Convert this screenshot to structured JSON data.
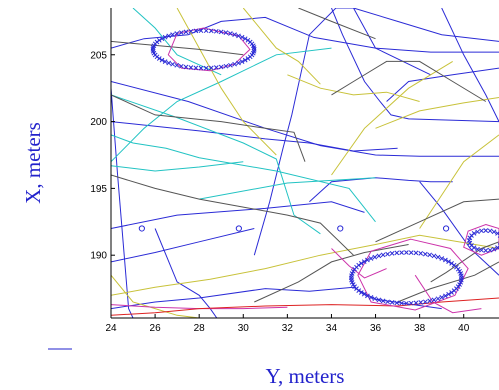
{
  "chart_data": {
    "type": "line",
    "title": "",
    "xlabel": "Y, meters",
    "ylabel": "X, meters",
    "xlim": [
      24,
      41.6
    ],
    "ylim": [
      185.3,
      208.5
    ],
    "xticks": [
      24,
      26,
      28,
      30,
      32,
      34,
      36,
      38,
      40
    ],
    "yticks": [
      190,
      195,
      200,
      205
    ],
    "grid": false,
    "colors": {
      "blue": "#2b2bd6",
      "cyan": "#22c3c3",
      "olive": "#c8c23a",
      "gray": "#555555",
      "magenta": "#cc33aa",
      "red": "#dd2222",
      "axis": "#000000"
    },
    "series": [
      {
        "color": "blue",
        "x": [
          24,
          24.3,
          24.6,
          24.8,
          25.0
        ],
        "y": [
          202.5,
          196,
          190,
          186,
          185.3
        ]
      },
      {
        "color": "blue",
        "x": [
          24,
          27.5,
          31,
          33.5,
          36,
          38,
          41.6
        ],
        "y": [
          203,
          201.5,
          199.5,
          198.2,
          197.5,
          197.4,
          197.4
        ]
      },
      {
        "color": "blue",
        "x": [
          24,
          27,
          31,
          34,
          35.5
        ],
        "y": [
          192,
          193,
          193.5,
          194,
          193.2
        ]
      },
      {
        "color": "blue",
        "x": [
          24,
          26,
          28,
          30.5
        ],
        "y": [
          189.5,
          190.2,
          191,
          192
        ]
      },
      {
        "color": "blue",
        "x": [
          24,
          25.5,
          27.5,
          29,
          31,
          33.2,
          36,
          38.5,
          41.6
        ],
        "y": [
          205.5,
          206.2,
          206.5,
          207.5,
          207.8,
          206.3,
          205.5,
          205.2,
          205.2
        ]
      },
      {
        "color": "blue",
        "x": [
          24,
          28,
          31,
          33,
          35,
          37
        ],
        "y": [
          200,
          199.3,
          198.7,
          198.4,
          197.8,
          198.0
        ]
      },
      {
        "color": "blue",
        "x": [
          26,
          27,
          28,
          28.5,
          28.8
        ],
        "y": [
          192,
          188,
          187,
          186,
          185.3
        ]
      },
      {
        "color": "blue",
        "x": [
          30.5,
          31.2,
          31.8,
          32.2,
          32.6,
          33,
          34.2,
          35,
          36,
          38.5
        ],
        "y": [
          190,
          194,
          198,
          200.5,
          203.5,
          206.5,
          208.5,
          208.5,
          205.5,
          203.5
        ]
      },
      {
        "color": "blue",
        "x": [
          34,
          34.5,
          35.5,
          36.2,
          36.7,
          37.5,
          41.6
        ],
        "y": [
          208.5,
          206.5,
          203,
          201.5,
          200.5,
          200.2,
          200
        ]
      },
      {
        "color": "blue",
        "x": [
          35,
          37,
          39,
          41.6
        ],
        "y": [
          208.5,
          207.5,
          206.5,
          206
        ]
      },
      {
        "color": "blue",
        "x": [
          36.5,
          37.5,
          39.5,
          41.6
        ],
        "y": [
          201.5,
          203,
          203.5,
          204
        ]
      },
      {
        "color": "blue",
        "x": [
          38,
          39,
          40.3,
          41.6
        ],
        "y": [
          195.5,
          193.5,
          190.5,
          188.5
        ]
      },
      {
        "color": "blue",
        "x": [
          24,
          26,
          28,
          31,
          33,
          35,
          36,
          39
        ],
        "y": [
          186,
          186.5,
          186.8,
          187.5,
          187.3,
          187.6,
          186.7,
          186
        ]
      },
      {
        "color": "blue",
        "x": [
          39,
          40,
          41,
          41.6
        ],
        "y": [
          208.5,
          205,
          202,
          200
        ]
      },
      {
        "color": "blue",
        "x": [
          33,
          34,
          36,
          37.5,
          38.5,
          39.5
        ],
        "y": [
          194,
          195.5,
          195.8,
          195.6,
          195.5,
          195.5
        ]
      },
      {
        "color": "cyan",
        "x": [
          24,
          25,
          26.5,
          28,
          31.5,
          34.8,
          36
        ],
        "y": [
          199,
          198.4,
          198,
          197.3,
          196.3,
          195,
          192.5
        ]
      },
      {
        "color": "cyan",
        "x": [
          24,
          27,
          30,
          31.5,
          32.3,
          33.5
        ],
        "y": [
          202,
          200.3,
          198.4,
          197.2,
          193,
          191.6
        ]
      },
      {
        "color": "cyan",
        "x": [
          24,
          25.5,
          27,
          29,
          31.5,
          34
        ],
        "y": [
          197,
          199.5,
          201.5,
          203,
          205,
          205.5
        ]
      },
      {
        "color": "cyan",
        "x": [
          25,
          26,
          27,
          29
        ],
        "y": [
          208.5,
          207,
          205,
          203.5
        ]
      },
      {
        "color": "cyan",
        "x": [
          28,
          32,
          36
        ],
        "y": [
          194.2,
          195.4,
          195.8
        ]
      },
      {
        "color": "cyan",
        "x": [
          24,
          26,
          28,
          30
        ],
        "y": [
          196.7,
          196.3,
          196.6,
          197
        ]
      },
      {
        "color": "olive",
        "x": [
          24,
          25,
          26,
          27,
          28
        ],
        "y": [
          188.5,
          186.5,
          186,
          185.5,
          185.3
        ]
      },
      {
        "color": "olive",
        "x": [
          27,
          28,
          29,
          30,
          31.5
        ],
        "y": [
          208.5,
          205.5,
          202.5,
          200,
          197.5
        ]
      },
      {
        "color": "olive",
        "x": [
          30,
          31.5,
          32.5,
          33.5
        ],
        "y": [
          208.5,
          205.5,
          204.5,
          202.8
        ]
      },
      {
        "color": "olive",
        "x": [
          32,
          33.5,
          35,
          36.5,
          38
        ],
        "y": [
          203.5,
          202.5,
          202,
          202.2,
          201.5
        ]
      },
      {
        "color": "olive",
        "x": [
          34,
          35.5,
          37.5,
          39.5
        ],
        "y": [
          196,
          199.5,
          202.5,
          204.5
        ]
      },
      {
        "color": "olive",
        "x": [
          38,
          39,
          40,
          41.6
        ],
        "y": [
          192,
          194.5,
          197,
          199
        ]
      },
      {
        "color": "olive",
        "x": [
          24,
          26,
          28.5,
          31,
          33.5,
          36,
          38,
          41.6
        ],
        "y": [
          187,
          187.6,
          188.2,
          189,
          190,
          190.8,
          191.5,
          190.5
        ]
      },
      {
        "color": "olive",
        "x": [
          36,
          38,
          40,
          41.6
        ],
        "y": [
          199.5,
          200.8,
          201.4,
          201.8
        ]
      },
      {
        "color": "gray",
        "x": [
          24,
          26,
          28,
          30,
          32,
          33.5,
          35
        ],
        "y": [
          196,
          195,
          194.2,
          193.6,
          193,
          192.4,
          190
        ]
      },
      {
        "color": "gray",
        "x": [
          30.5,
          32.5,
          34,
          35.5,
          36.5,
          37.5
        ],
        "y": [
          186.5,
          188,
          189.5,
          190.2,
          190.5,
          190.8
        ]
      },
      {
        "color": "gray",
        "x": [
          34,
          35,
          36.5,
          38,
          39.5,
          41
        ],
        "y": [
          202,
          203,
          204.5,
          204.5,
          203,
          201.5
        ]
      },
      {
        "color": "gray",
        "x": [
          36,
          38,
          40,
          41.6
        ],
        "y": [
          191,
          192.5,
          194,
          194.2
        ]
      },
      {
        "color": "gray",
        "x": [
          37,
          38.5,
          40.5,
          41.6
        ],
        "y": [
          186.5,
          187.5,
          188.5,
          189.5
        ]
      },
      {
        "color": "gray",
        "x": [
          24,
          26,
          29,
          31,
          32.3,
          32.8
        ],
        "y": [
          202,
          200.5,
          200,
          199.5,
          199.2,
          197
        ]
      },
      {
        "color": "gray",
        "x": [
          32.5,
          34,
          36
        ],
        "y": [
          208.5,
          207.5,
          206.2
        ]
      },
      {
        "color": "gray",
        "x": [
          24,
          26,
          28,
          30
        ],
        "y": [
          206,
          205.7,
          205.4,
          205
        ]
      },
      {
        "color": "gray",
        "x": [
          38.5,
          39.2,
          40.8,
          41.6
        ],
        "y": [
          188,
          188.7,
          190.5,
          191
        ]
      },
      {
        "color": "magenta",
        "x": [
          34,
          34.8,
          35.5,
          36.5
        ],
        "y": [
          190.5,
          189.2,
          188.3,
          189
        ]
      },
      {
        "color": "magenta",
        "x": [
          37.8,
          38.6,
          39.5,
          40.8
        ],
        "y": [
          188.5,
          186.5,
          185.7,
          186
        ]
      },
      {
        "color": "magenta",
        "x": [
          24,
          26,
          28,
          30,
          32
        ],
        "y": [
          186.3,
          186.1,
          186.0,
          186.0,
          186.1
        ]
      },
      {
        "color": "red",
        "x": [
          24,
          26,
          28,
          31,
          34,
          37,
          39,
          41.6
        ],
        "y": [
          185.5,
          185.7,
          186,
          186.2,
          186.3,
          186.2,
          186.5,
          186.8
        ]
      }
    ],
    "closed_curves": [
      {
        "color": "magenta",
        "x": [
          28.2,
          29.8,
          30.3,
          29.6,
          28.5,
          27.2,
          26.6,
          27.0,
          28.2
        ],
        "y": [
          207.0,
          206.4,
          205.4,
          204.3,
          203.8,
          204.0,
          205.0,
          206.6,
          207.0
        ]
      },
      {
        "color": "magenta",
        "x": [
          37.6,
          39.4,
          40.2,
          39.6,
          37.8,
          35.8,
          35.2,
          35.8,
          37.6
        ],
        "y": [
          191.2,
          190.5,
          189.0,
          187.0,
          185.9,
          186.5,
          188.5,
          190.3,
          191.2
        ]
      },
      {
        "color": "magenta",
        "x": [
          41.0,
          41.6,
          41.6,
          40.8,
          40.0,
          40.2,
          41.0
        ],
        "y": [
          192.3,
          192.0,
          190.5,
          190.0,
          190.6,
          191.8,
          192.3
        ]
      }
    ],
    "x_marker_rings": [
      {
        "cx": 28.2,
        "cy": 205.4,
        "rx": 2.3,
        "ry": 1.4
      },
      {
        "cx": 37.4,
        "cy": 188.3,
        "rx": 2.5,
        "ry": 1.9
      },
      {
        "cx": 41.0,
        "cy": 191.1,
        "rx": 0.75,
        "ry": 0.75
      }
    ],
    "circle_markers": {
      "x": [
        25.4,
        29.8,
        34.4,
        39.2
      ],
      "y": [
        192,
        192,
        192,
        192
      ]
    }
  }
}
